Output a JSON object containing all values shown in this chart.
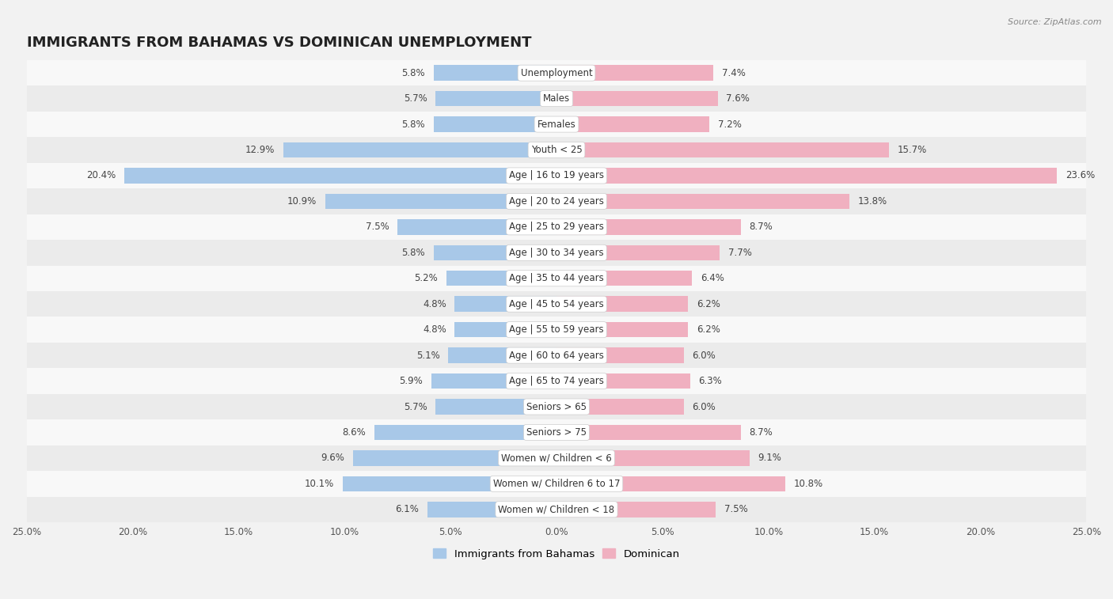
{
  "title": "IMMIGRANTS FROM BAHAMAS VS DOMINICAN UNEMPLOYMENT",
  "source": "Source: ZipAtlas.com",
  "categories": [
    "Unemployment",
    "Males",
    "Females",
    "Youth < 25",
    "Age | 16 to 19 years",
    "Age | 20 to 24 years",
    "Age | 25 to 29 years",
    "Age | 30 to 34 years",
    "Age | 35 to 44 years",
    "Age | 45 to 54 years",
    "Age | 55 to 59 years",
    "Age | 60 to 64 years",
    "Age | 65 to 74 years",
    "Seniors > 65",
    "Seniors > 75",
    "Women w/ Children < 6",
    "Women w/ Children 6 to 17",
    "Women w/ Children < 18"
  ],
  "bahamas_values": [
    5.8,
    5.7,
    5.8,
    12.9,
    20.4,
    10.9,
    7.5,
    5.8,
    5.2,
    4.8,
    4.8,
    5.1,
    5.9,
    5.7,
    8.6,
    9.6,
    10.1,
    6.1
  ],
  "dominican_values": [
    7.4,
    7.6,
    7.2,
    15.7,
    23.6,
    13.8,
    8.7,
    7.7,
    6.4,
    6.2,
    6.2,
    6.0,
    6.3,
    6.0,
    8.7,
    9.1,
    10.8,
    7.5
  ],
  "bahamas_color": "#a8c8e8",
  "dominican_color": "#f0b0c0",
  "axis_limit": 25.0,
  "background_color": "#f2f2f2",
  "row_color_odd": "#ebebeb",
  "row_color_even": "#f8f8f8",
  "bar_height": 0.6,
  "title_fontsize": 13,
  "label_fontsize": 8.5,
  "value_fontsize": 8.5,
  "legend_label_bahamas": "Immigrants from Bahamas",
  "legend_label_dominican": "Dominican"
}
